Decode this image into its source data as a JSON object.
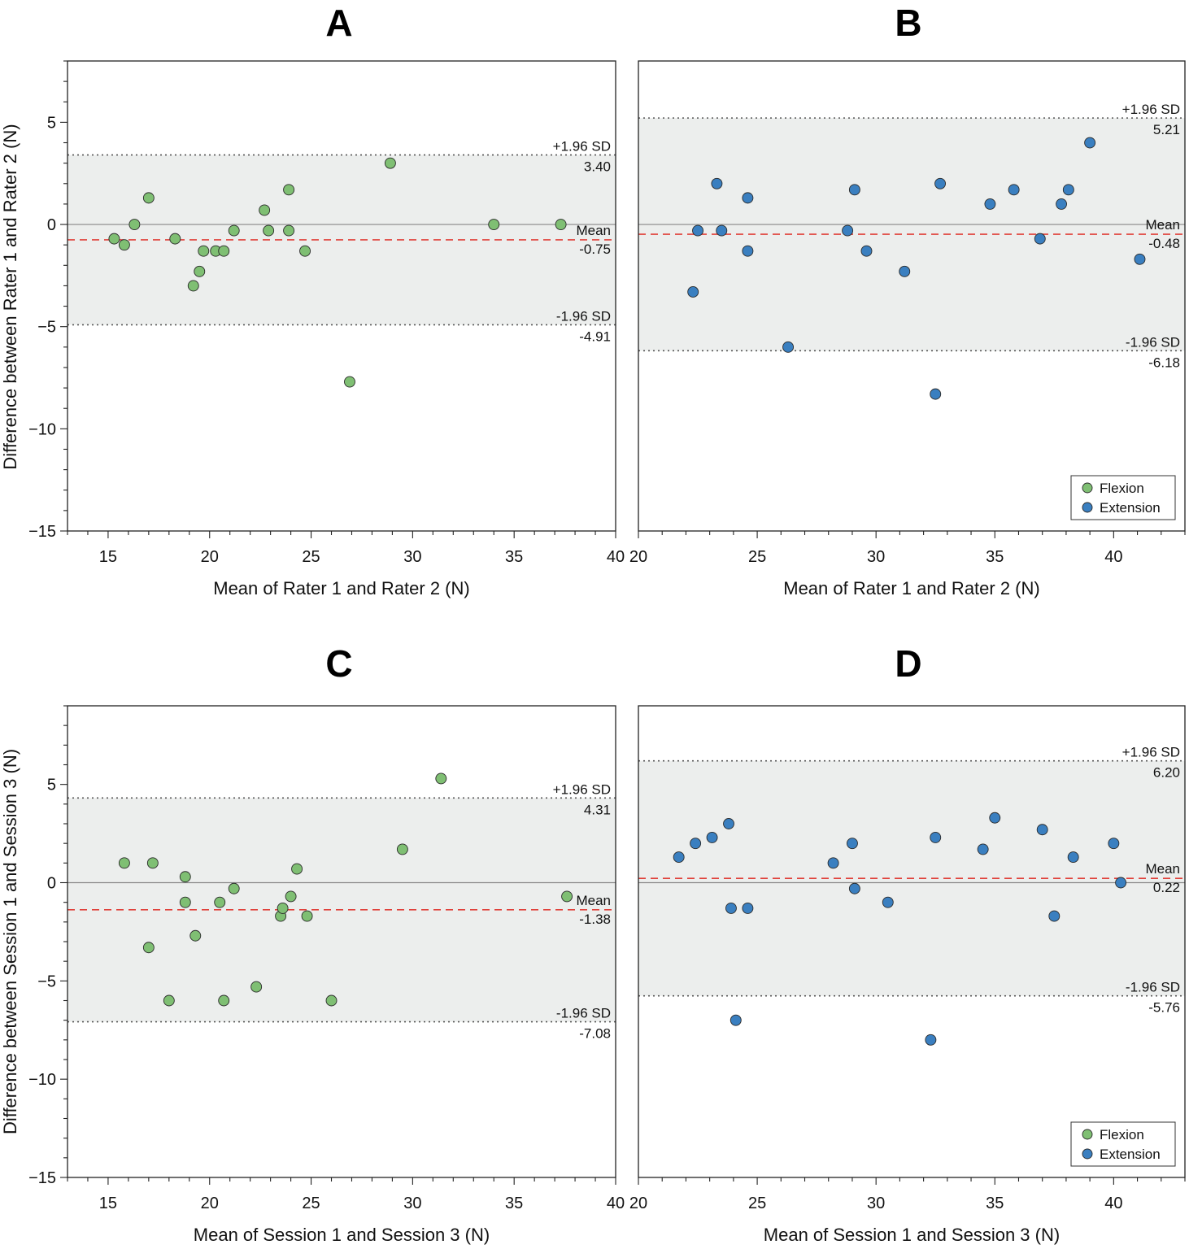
{
  "colors": {
    "flexion": "#7fbf73",
    "extension": "#3a7fc0",
    "band": "#eceeed",
    "mean_line": "#e0403a",
    "zero_line": "#888888",
    "sd_line": "#555555"
  },
  "legend": {
    "flexion": "Flexion",
    "extension": "Extension"
  },
  "row_labels": {
    "top_ylabel": "Difference between Rater 1 and Rater 2 (N)",
    "bottom_ylabel": "Difference between Session 1 and Session 3 (N)"
  },
  "chart_data": [
    {
      "panel": "A",
      "type": "scatter",
      "title": "A",
      "xlabel": "Mean of Rater 1 and Rater 2 (N)",
      "ylabel": "Difference between Rater 1 and Rater 2 (N)",
      "xlim": [
        13,
        40
      ],
      "ylim": [
        -15,
        8
      ],
      "xticks": [
        15,
        20,
        25,
        30,
        35,
        40
      ],
      "yticks": [
        -15,
        -10,
        -5,
        0,
        5
      ],
      "series_group": "flexion",
      "mean": -0.75,
      "upper": 3.4,
      "lower": -4.91,
      "mean_label": "Mean",
      "mean_value": "-0.75",
      "upper_label": "+1.96 SD",
      "upper_value": "3.40",
      "lower_label": "-1.96 SD",
      "lower_value": "-4.91",
      "legend": false,
      "points": [
        [
          15.3,
          -0.7
        ],
        [
          15.8,
          -1.0
        ],
        [
          16.3,
          0.0
        ],
        [
          17.0,
          1.3
        ],
        [
          18.3,
          -0.7
        ],
        [
          19.2,
          -3.0
        ],
        [
          19.5,
          -2.3
        ],
        [
          19.7,
          -1.3
        ],
        [
          20.3,
          -1.3
        ],
        [
          20.7,
          -1.3
        ],
        [
          21.2,
          -0.3
        ],
        [
          22.7,
          0.7
        ],
        [
          22.9,
          -0.3
        ],
        [
          23.9,
          1.7
        ],
        [
          23.9,
          -0.3
        ],
        [
          24.7,
          -1.3
        ],
        [
          26.9,
          -7.7
        ],
        [
          28.9,
          3.0
        ],
        [
          34.0,
          0.0
        ],
        [
          37.3,
          0.0
        ]
      ]
    },
    {
      "panel": "B",
      "type": "scatter",
      "title": "B",
      "xlabel": "Mean of Rater 1 and Rater 2 (N)",
      "ylabel": "",
      "xlim": [
        20,
        43
      ],
      "ylim": [
        -15,
        8
      ],
      "xticks": [
        20,
        25,
        30,
        35,
        40
      ],
      "yticks": [],
      "series_group": "extension",
      "mean": -0.48,
      "upper": 5.21,
      "lower": -6.18,
      "mean_label": "Mean",
      "mean_value": "-0.48",
      "upper_label": "+1.96 SD",
      "upper_value": "5.21",
      "lower_label": "-1.96 SD",
      "lower_value": "-6.18",
      "legend": true,
      "points": [
        [
          22.3,
          -3.3
        ],
        [
          22.5,
          -0.3
        ],
        [
          23.3,
          2.0
        ],
        [
          23.5,
          -0.3
        ],
        [
          24.6,
          1.3
        ],
        [
          24.6,
          -1.3
        ],
        [
          26.3,
          -6.0
        ],
        [
          28.8,
          -0.3
        ],
        [
          29.1,
          1.7
        ],
        [
          29.6,
          -1.3
        ],
        [
          31.2,
          -2.3
        ],
        [
          32.5,
          -8.3
        ],
        [
          32.7,
          2.0
        ],
        [
          34.8,
          1.0
        ],
        [
          35.8,
          1.7
        ],
        [
          36.9,
          -0.7
        ],
        [
          37.8,
          1.0
        ],
        [
          38.1,
          1.7
        ],
        [
          39.0,
          4.0
        ],
        [
          41.1,
          -1.7
        ]
      ]
    },
    {
      "panel": "C",
      "type": "scatter",
      "title": "C",
      "xlabel": "Mean of Session 1 and Session 3 (N)",
      "ylabel": "Difference between Session 1 and Session 3 (N)",
      "xlim": [
        13,
        40
      ],
      "ylim": [
        -15,
        9
      ],
      "xticks": [
        15,
        20,
        25,
        30,
        35,
        40
      ],
      "yticks": [
        -15,
        -10,
        -5,
        0,
        5
      ],
      "series_group": "flexion",
      "mean": -1.38,
      "upper": 4.31,
      "lower": -7.08,
      "mean_label": "Mean",
      "mean_value": "-1.38",
      "upper_label": "+1.96 SD",
      "upper_value": "4.31",
      "lower_label": "-1.96 SD",
      "lower_value": "-7.08",
      "legend": false,
      "points": [
        [
          15.8,
          1.0
        ],
        [
          17.0,
          -3.3
        ],
        [
          17.2,
          1.0
        ],
        [
          18.0,
          -6.0
        ],
        [
          18.8,
          0.3
        ],
        [
          18.8,
          -1.0
        ],
        [
          19.3,
          -2.7
        ],
        [
          20.5,
          -1.0
        ],
        [
          20.7,
          -6.0
        ],
        [
          21.2,
          -0.3
        ],
        [
          22.3,
          -5.3
        ],
        [
          23.5,
          -1.7
        ],
        [
          23.6,
          -1.3
        ],
        [
          24.0,
          -0.7
        ],
        [
          24.3,
          0.7
        ],
        [
          24.8,
          -1.7
        ],
        [
          26.0,
          -6.0
        ],
        [
          29.5,
          1.7
        ],
        [
          31.4,
          5.3
        ],
        [
          37.6,
          -0.7
        ]
      ]
    },
    {
      "panel": "D",
      "type": "scatter",
      "title": "D",
      "xlabel": "Mean of Session 1 and Session 3 (N)",
      "ylabel": "",
      "xlim": [
        20,
        43
      ],
      "ylim": [
        -15,
        9
      ],
      "xticks": [
        20,
        25,
        30,
        35,
        40
      ],
      "yticks": [],
      "series_group": "extension",
      "mean": 0.22,
      "upper": 6.2,
      "lower": -5.76,
      "mean_label": "Mean",
      "mean_value": "0.22",
      "upper_label": "+1.96 SD",
      "upper_value": "6.20",
      "lower_label": "-1.96 SD",
      "lower_value": "-5.76",
      "legend": true,
      "points": [
        [
          21.7,
          1.3
        ],
        [
          22.4,
          2.0
        ],
        [
          23.1,
          2.3
        ],
        [
          23.8,
          3.0
        ],
        [
          23.9,
          -1.3
        ],
        [
          24.1,
          -7.0
        ],
        [
          24.6,
          -1.3
        ],
        [
          28.2,
          1.0
        ],
        [
          29.0,
          2.0
        ],
        [
          29.1,
          -0.3
        ],
        [
          30.5,
          -1.0
        ],
        [
          32.3,
          -8.0
        ],
        [
          32.5,
          2.3
        ],
        [
          34.5,
          1.7
        ],
        [
          35.0,
          3.3
        ],
        [
          37.0,
          2.7
        ],
        [
          37.5,
          -1.7
        ],
        [
          38.3,
          1.3
        ],
        [
          40.0,
          2.0
        ],
        [
          40.3,
          0.0
        ]
      ]
    }
  ]
}
